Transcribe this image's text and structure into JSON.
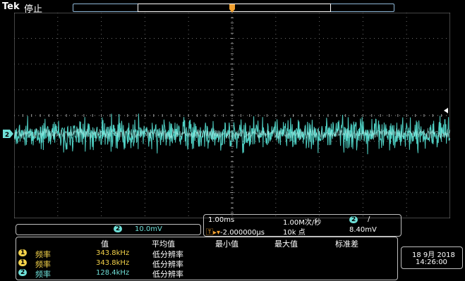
{
  "header": {
    "brand": "Tek",
    "status": "停止"
  },
  "markers": {
    "channel_marker": "2",
    "trigger_marker": "T"
  },
  "channel_readout": {
    "channel": "2",
    "scale": "10.0mV"
  },
  "horizontal": {
    "timebase": "1.00ms",
    "sample_rate": "1.00M次/秒",
    "trigger_channel": "2",
    "trigger_slope": "/",
    "trigger_position": "-2.000000μs",
    "record_length": "10k 点",
    "trigger_level": "8.40mV"
  },
  "measurements": {
    "headers": [
      "值",
      "平均值",
      "最小值",
      "最大值",
      "标准差"
    ],
    "rows": [
      {
        "channel": "1",
        "label": "频率",
        "value": "343.8kHz",
        "mean": "低分辨率"
      },
      {
        "channel": "1",
        "label": "频率",
        "value": "343.8kHz",
        "mean": "低分辨率"
      },
      {
        "channel": "2",
        "label": "频率",
        "value": "128.4kHz",
        "mean": "低分辨率"
      }
    ]
  },
  "datetime": {
    "date": "18 9月 2018",
    "time": "14:26:00"
  },
  "colors": {
    "ch1": "#f3d24a",
    "ch2": "#6fe0d8",
    "trigger": "#f0a030",
    "grid": "#7a7a7a"
  }
}
